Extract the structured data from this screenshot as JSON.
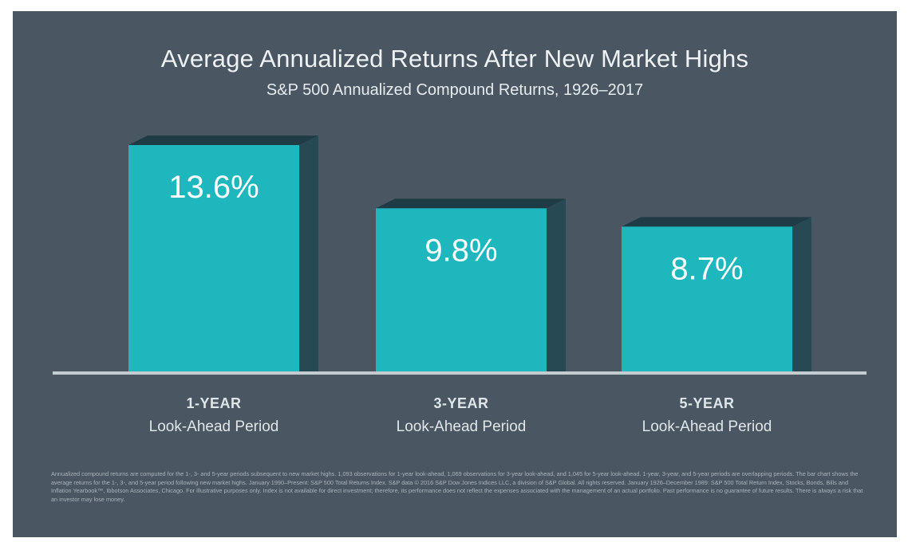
{
  "title": "Average Annualized Returns After New Market Highs",
  "subtitle": "S&P 500 Annualized Compound Returns, 1926–2017",
  "colors": {
    "background": "#4a5661",
    "bar_front": "#1fb7be",
    "bar_side": "#274954",
    "bar_top": "#1f3b45",
    "baseline": "#c4ccd0"
  },
  "chart_data": {
    "type": "bar",
    "categories": [
      "1-YEAR",
      "3-YEAR",
      "5-YEAR"
    ],
    "category_sublabels": [
      "Look-Ahead Period",
      "Look-Ahead Period",
      "Look-Ahead Period"
    ],
    "values": [
      13.6,
      9.8,
      8.7
    ],
    "value_labels": [
      "13.6%",
      "9.8%",
      "8.7%"
    ],
    "title": "Average Annualized Returns After New Market Highs",
    "subtitle": "S&P 500 Annualized Compound Returns, 1926–2017",
    "xlabel": "",
    "ylabel": "",
    "ylim": [
      0,
      13.6
    ],
    "grid": false,
    "style": "3d-bar"
  },
  "footnote": "Annualized compound returns are computed for the 1-, 3- and 5-year periods subsequent to new market highs. 1,093 observations for 1-year look-ahead, 1,069 observations for 3-year look-ahead, and 1,045 for 5-year look-ahead. 1-year, 3-year, and 5-year periods are overlapping periods. The bar chart shows the average returns for the 1-, 3-, and 5-year period following new market highs. January 1990–Present: S&P 500 Total Returns Index. S&P data © 2016 S&P Dow Jones Indices LLC, a division of S&P Global. All rights reserved. January 1926–December 1989: S&P 500 Total Return Index, Stocks, Bonds, Bills and Inflation Yearbook™, Ibbotson Associates, Chicago. For illustrative purposes only. Index is not available for direct investment; therefore, its performance does not reflect the expenses associated with the management of an actual portfolio. Past performance is no guarantee of future results. There is always a risk that an investor may lose money."
}
